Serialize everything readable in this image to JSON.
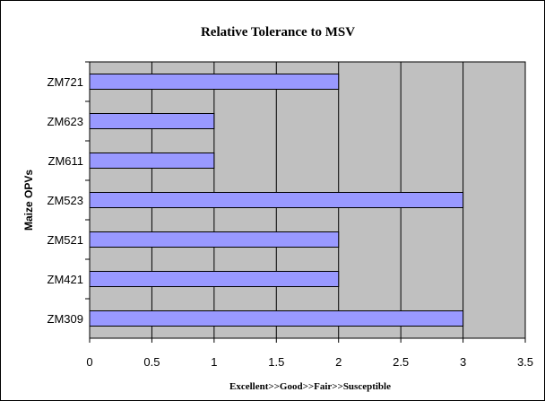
{
  "chart_data": {
    "type": "bar",
    "orientation": "horizontal",
    "title": "Relative Tolerance to MSV",
    "xlabel": "Excellent>>Good>>Fair>>Susceptible",
    "ylabel": "Maize OPVs",
    "categories": [
      "ZM721",
      "ZM623",
      "ZM611",
      "ZM523",
      "ZM521",
      "ZM421",
      "ZM309"
    ],
    "values": [
      2,
      1,
      1,
      3,
      2,
      2,
      3
    ],
    "xlim": [
      0,
      3.5
    ],
    "xticks": [
      "0",
      "0.5",
      "1",
      "1.5",
      "2",
      "2.5",
      "3",
      "3.5"
    ],
    "grid": true,
    "legend": "none",
    "colors": {
      "bar_fill": "#9999ff",
      "bar_stroke": "#000000",
      "plot_bg": "#c0c0c0",
      "gridline": "#000000"
    }
  }
}
